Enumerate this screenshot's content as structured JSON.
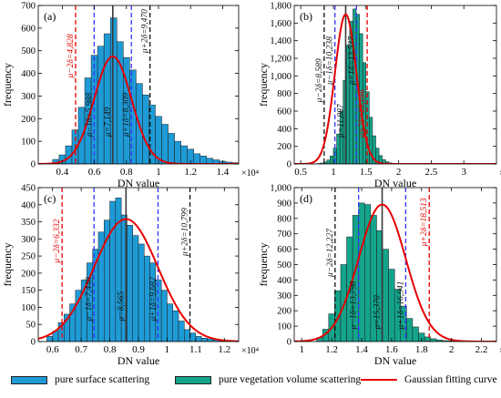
{
  "legend": {
    "surface": "pure surface scattering",
    "vegetation": "pure vegetation volume scattering",
    "curve": "Gaussian fitting curve"
  },
  "colors": {
    "surface": "#1e9bd7",
    "vegetation": "#14a48c",
    "curve": "#e60000",
    "mean": "#3a3a3a",
    "sd1": "#3333ff",
    "sd2": "#e60000",
    "sd2b": "#111111"
  },
  "chart_data": [
    {
      "type": "bar",
      "panel": "(a)",
      "fill": "surface",
      "ylabel": "frequency",
      "xlabel": "DN value",
      "x_exponent": "×10⁴",
      "xlim": [
        0.25,
        1.5
      ],
      "ylim": [
        0,
        700
      ],
      "xticks": [
        0.4,
        0.6,
        0.8,
        1,
        1.2,
        1.4
      ],
      "xtick_labels": [
        "0.4",
        "0.6",
        "0.8",
        "1",
        "1.2",
        "1.4"
      ],
      "yticks": [
        0,
        100,
        200,
        300,
        400,
        500,
        600,
        700
      ],
      "ytick_labels": [
        "0",
        "100",
        "200",
        "300",
        "400",
        "500",
        "600",
        "700"
      ],
      "bins": {
        "start": 0.34,
        "width": 0.04,
        "values": [
          20,
          40,
          80,
          150,
          250,
          380,
          480,
          520,
          575,
          645,
          540,
          470,
          415,
          355,
          305,
          260,
          210,
          175,
          135,
          100,
          80,
          65,
          45,
          35,
          25,
          18,
          12,
          8,
          5,
          3
        ]
      },
      "gauss": {
        "mu": 0.7149,
        "sd": 0.116,
        "peak": 475
      },
      "lines": [
        {
          "x": 0.4828,
          "style": "sd2",
          "label": "μ−2δ=4,828",
          "ly": 380
        },
        {
          "x": 0.5988,
          "style": "sd1",
          "label": "μ−1δ=5,988",
          "ly": 120
        },
        {
          "x": 0.7149,
          "style": "mean",
          "label": "μ=7,149",
          "ly": 120
        },
        {
          "x": 0.8309,
          "style": "sd1",
          "label": "μ+1δ=8,309",
          "ly": 120
        },
        {
          "x": 0.947,
          "style": "sd2b",
          "label": "μ+2δ=9,470",
          "ly": 490
        }
      ]
    },
    {
      "type": "bar",
      "panel": "(b)",
      "fill": "vegetation",
      "ylabel": "frequency",
      "xlabel": "DN value",
      "x_exponent": "×10⁴",
      "xlim": [
        0.4,
        3.5
      ],
      "ylim": [
        0,
        1800
      ],
      "xticks": [
        0.5,
        1,
        1.5,
        2,
        2.5,
        3
      ],
      "xtick_labels": [
        "0.5",
        "1",
        "1.5",
        "2",
        "2.5",
        "3"
      ],
      "yticks": [
        0,
        200,
        400,
        600,
        800,
        1000,
        1200,
        1400,
        1600,
        1800
      ],
      "ytick_labels": [
        "0",
        "200",
        "400",
        "600",
        "800",
        "1,000",
        "1,200",
        "1,400",
        "1,600",
        "1,800"
      ],
      "bins": {
        "start": 0.7,
        "width": 0.05,
        "values": [
          2,
          5,
          10,
          20,
          45,
          90,
          180,
          340,
          600,
          950,
          1350,
          1620,
          1760,
          1700,
          1480,
          1150,
          820,
          530,
          320,
          180,
          95,
          50,
          25,
          12,
          6,
          3,
          2,
          1,
          1,
          1
        ]
      },
      "gauss": {
        "mu": 1.1887,
        "sd": 0.165,
        "peak": 1700
      },
      "lines": [
        {
          "x": 0.8589,
          "style": "sd2b",
          "label": "μ−2δ=8,589",
          "ly": 700
        },
        {
          "x": 1.0238,
          "style": "sd1",
          "label": "μ−1δ=10,238",
          "ly": 900
        },
        {
          "x": 1.1887,
          "style": "mean",
          "label": "μ=11,887",
          "ly": 300
        },
        {
          "x": 1.3537,
          "style": "sd1",
          "label": "μ+1δ=13,537",
          "ly": 900
        },
        {
          "x": 1.5186,
          "style": "sd2",
          "label": "μ+2δ=15,186",
          "ly": 300
        }
      ]
    },
    {
      "type": "bar",
      "panel": "(c)",
      "fill": "surface",
      "ylabel": "frequency",
      "xlabel": "DN value",
      "x_exponent": "×10⁴",
      "xlim": [
        0.55,
        1.25
      ],
      "ylim": [
        0,
        450
      ],
      "xticks": [
        0.6,
        0.7,
        0.8,
        0.9,
        1,
        1.1,
        1.2
      ],
      "xtick_labels": [
        "0.6",
        "0.7",
        "0.8",
        "0.9",
        "1",
        "1.1",
        "1.2"
      ],
      "yticks": [
        0,
        50,
        100,
        150,
        200,
        250,
        300,
        350,
        400,
        450
      ],
      "ytick_labels": [
        "0",
        "50",
        "100",
        "150",
        "200",
        "250",
        "300",
        "350",
        "400",
        "450"
      ],
      "bins": {
        "start": 0.58,
        "width": 0.02,
        "values": [
          15,
          30,
          55,
          80,
          110,
          150,
          180,
          230,
          270,
          320,
          355,
          410,
          420,
          370,
          340,
          310,
          285,
          250,
          230,
          180,
          150,
          110,
          90,
          60,
          35,
          25,
          15,
          10,
          8,
          5,
          3,
          2
        ]
      },
      "gauss": {
        "mu": 0.8565,
        "sd": 0.1117,
        "peak": 358
      },
      "lines": [
        {
          "x": 0.6332,
          "style": "sd2",
          "label": "μ−2δ=6,332",
          "ly": 230
        },
        {
          "x": 0.7448,
          "style": "sd1",
          "label": "μ−1δ=7,448",
          "ly": 60
        },
        {
          "x": 0.8565,
          "style": "mean",
          "label": "μ=8,565",
          "ly": 60
        },
        {
          "x": 0.9682,
          "style": "sd1",
          "label": "μ+1δ=9,682",
          "ly": 60
        },
        {
          "x": 1.0799,
          "style": "sd2b",
          "label": "μ+2δ=10,799",
          "ly": 250
        }
      ]
    },
    {
      "type": "bar",
      "panel": "(d)",
      "fill": "vegetation",
      "ylabel": "frequency",
      "xlabel": "DN value",
      "x_exponent": "×10⁴",
      "xlim": [
        0.95,
        2.3
      ],
      "ylim": [
        0,
        1000
      ],
      "xticks": [
        1,
        1.2,
        1.4,
        1.6,
        1.8,
        2,
        2.2
      ],
      "xtick_labels": [
        "1",
        "1.2",
        "1.4",
        "1.6",
        "1.8",
        "2",
        "2.2"
      ],
      "yticks": [
        0,
        100,
        200,
        300,
        400,
        500,
        600,
        700,
        800,
        900,
        1000
      ],
      "ytick_labels": [
        "0",
        "100",
        "200",
        "300",
        "400",
        "500",
        "600",
        "700",
        "800",
        "900",
        "1,000"
      ],
      "bins": {
        "start": 1.1,
        "width": 0.04,
        "values": [
          25,
          80,
          180,
          330,
          500,
          680,
          820,
          900,
          890,
          820,
          720,
          600,
          470,
          340,
          230,
          150,
          95,
          55,
          30,
          18,
          10,
          6,
          4,
          3,
          2,
          1,
          1,
          1
        ]
      },
      "gauss": {
        "mu": 1.537,
        "sd": 0.1572,
        "peak": 890
      },
      "lines": [
        {
          "x": 1.2227,
          "style": "sd2b",
          "label": "μ−2δ=12,227",
          "ly": 420
        },
        {
          "x": 1.3798,
          "style": "sd1",
          "label": "μ−1δ=13,798",
          "ly": 80
        },
        {
          "x": 1.537,
          "style": "mean",
          "label": "μ=15,370",
          "ly": 80
        },
        {
          "x": 1.6941,
          "style": "sd1",
          "label": "μ+1δ=16,941",
          "ly": 80
        },
        {
          "x": 1.8513,
          "style": "sd2",
          "label": "μ+2δ=18,513",
          "ly": 620
        }
      ]
    }
  ]
}
